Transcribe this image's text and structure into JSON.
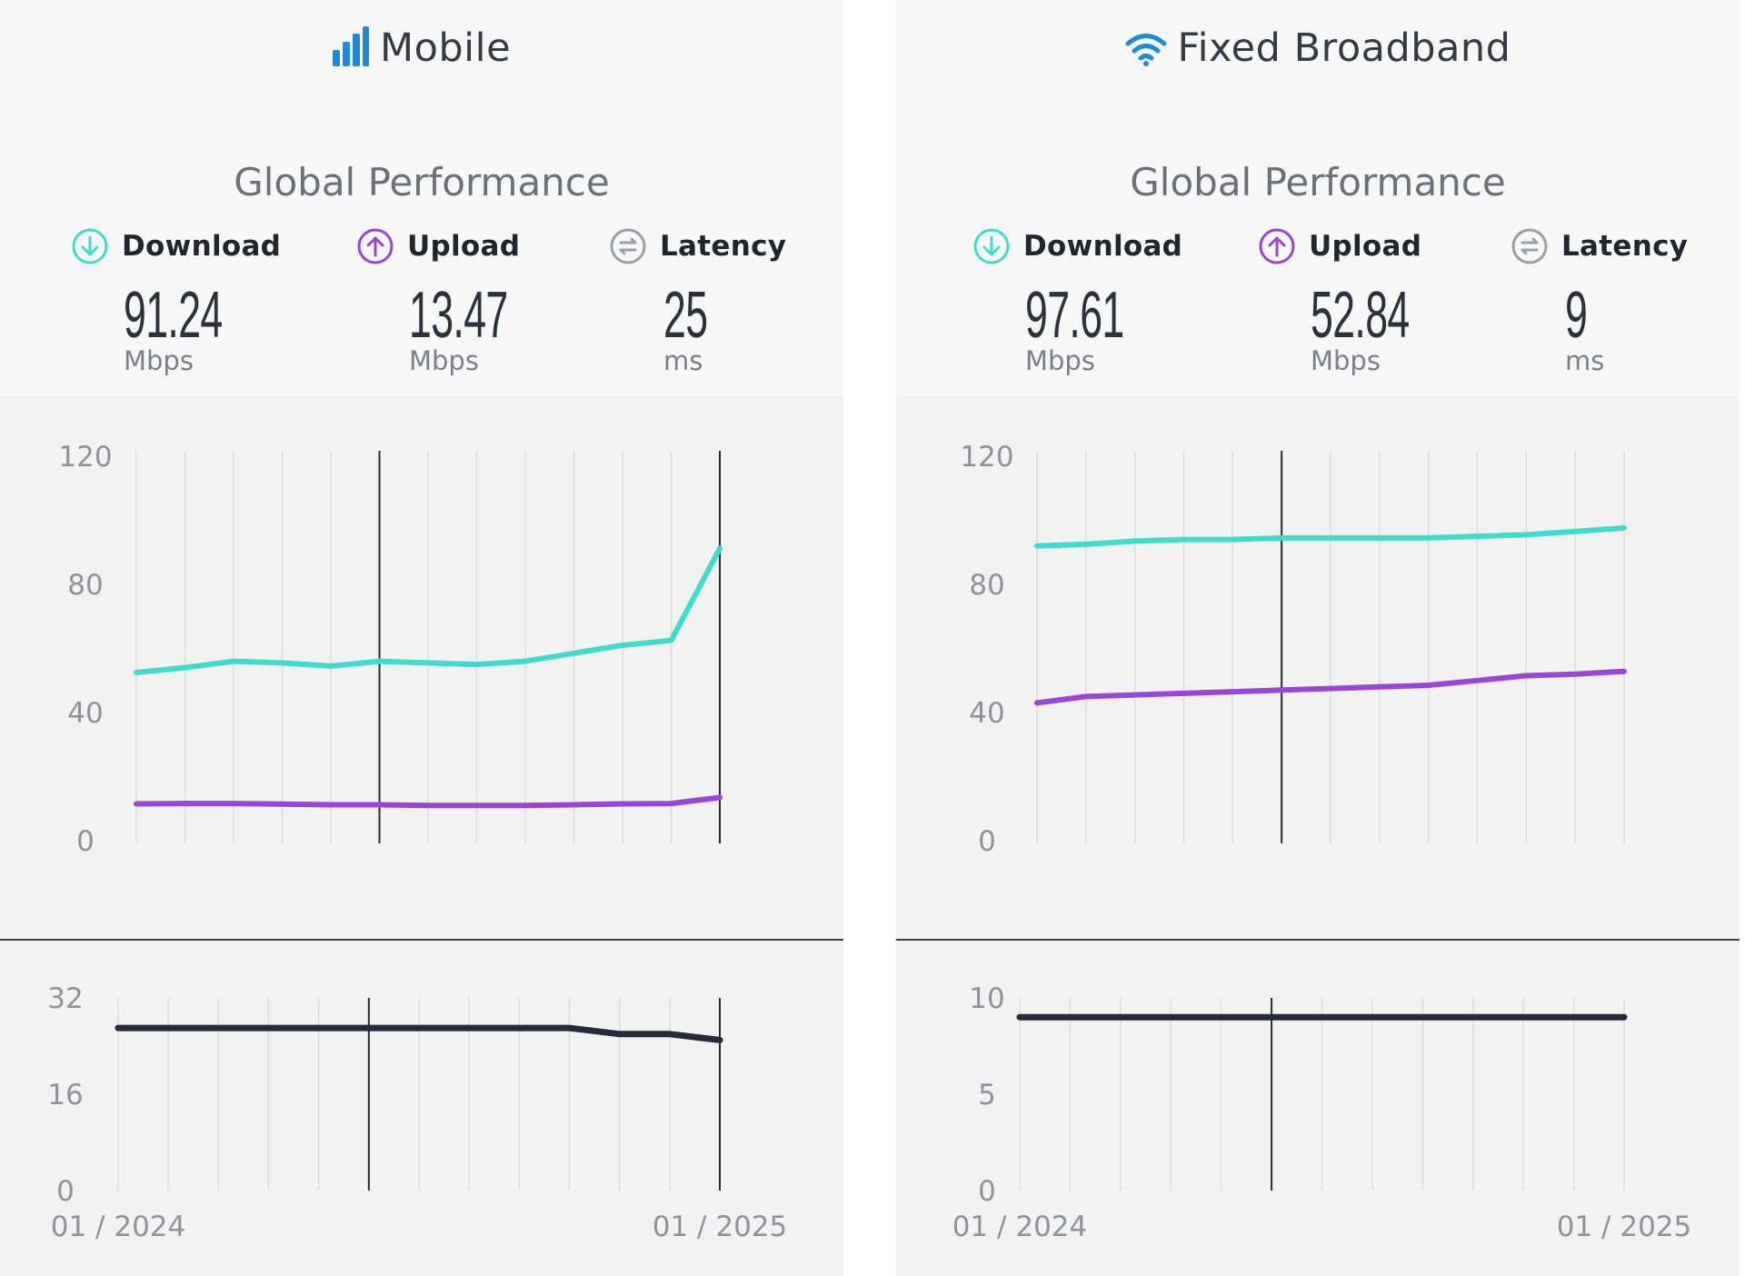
{
  "colors": {
    "download": "#40dccb",
    "upload": "#9b45d6",
    "latency": "#262b3b",
    "icon_blue": "#1f8ad6",
    "latency_icon": "#9aa0a8"
  },
  "panels": [
    {
      "id": "mobile",
      "title": "Mobile",
      "title_icon": "cell-signal-icon",
      "subtitle": "Global Performance",
      "metrics": [
        {
          "label": "Download",
          "icon": "download-icon",
          "value": "91.24",
          "unit": "Mbps"
        },
        {
          "label": "Upload",
          "icon": "upload-icon",
          "value": "13.47",
          "unit": "Mbps"
        },
        {
          "label": "Latency",
          "icon": "latency-icon",
          "value": "25",
          "unit": "ms"
        }
      ]
    },
    {
      "id": "fixed",
      "title": "Fixed Broadband",
      "title_icon": "wifi-icon",
      "subtitle": "Global Performance",
      "metrics": [
        {
          "label": "Download",
          "icon": "download-icon",
          "value": "97.61",
          "unit": "Mbps"
        },
        {
          "label": "Upload",
          "icon": "upload-icon",
          "value": "52.84",
          "unit": "Mbps"
        },
        {
          "label": "Latency",
          "icon": "latency-icon",
          "value": "9",
          "unit": "ms"
        }
      ]
    }
  ],
  "chart_data": [
    {
      "id": "mobile-speed",
      "type": "line",
      "x": [
        "01 / 2024",
        "02 / 2024",
        "03 / 2024",
        "04 / 2024",
        "05 / 2024",
        "06 / 2024",
        "07 / 2024",
        "08 / 2024",
        "09 / 2024",
        "10 / 2024",
        "11 / 2024",
        "12 / 2024",
        "01 / 2025"
      ],
      "series": [
        {
          "key": "download",
          "values": [
            52.5,
            54,
            56,
            55.5,
            54.5,
            56,
            55.5,
            55,
            56,
            58.5,
            61,
            62.5,
            91.24
          ]
        },
        {
          "key": "upload",
          "values": [
            11.5,
            11.6,
            11.6,
            11.4,
            11.2,
            11.2,
            11,
            11,
            11,
            11.2,
            11.5,
            11.6,
            13.47
          ]
        }
      ],
      "ylim": [
        0,
        120
      ],
      "yticks": [
        0,
        40,
        80,
        120
      ],
      "markers": [
        "06 / 2024",
        "01 / 2025"
      ],
      "grid": true
    },
    {
      "id": "mobile-latency",
      "type": "line",
      "x": [
        "01 / 2024",
        "02 / 2024",
        "03 / 2024",
        "04 / 2024",
        "05 / 2024",
        "06 / 2024",
        "07 / 2024",
        "08 / 2024",
        "09 / 2024",
        "10 / 2024",
        "11 / 2024",
        "12 / 2024",
        "01 / 2025"
      ],
      "series": [
        {
          "key": "latency",
          "values": [
            27,
            27,
            27,
            27,
            27,
            27,
            27,
            27,
            27,
            27,
            26,
            26,
            25
          ]
        }
      ],
      "ylim": [
        0,
        32
      ],
      "yticks": [
        0,
        16,
        32
      ],
      "xtick_labels": [
        "01 / 2024",
        "01 / 2025"
      ],
      "markers": [
        "06 / 2024",
        "01 / 2025"
      ],
      "grid": true
    },
    {
      "id": "fixed-speed",
      "type": "line",
      "x": [
        "01 / 2024",
        "02 / 2024",
        "03 / 2024",
        "04 / 2024",
        "05 / 2024",
        "06 / 2024",
        "07 / 2024",
        "08 / 2024",
        "09 / 2024",
        "10 / 2024",
        "11 / 2024",
        "12 / 2024",
        "01 / 2025"
      ],
      "series": [
        {
          "key": "download",
          "values": [
            92,
            92.5,
            93.5,
            94,
            94,
            94.5,
            94.5,
            94.5,
            94.5,
            95,
            95.5,
            96.5,
            97.61
          ]
        },
        {
          "key": "upload",
          "values": [
            43,
            45,
            45.5,
            46,
            46.5,
            47,
            47.5,
            48,
            48.5,
            50,
            51.5,
            52,
            52.84
          ]
        }
      ],
      "ylim": [
        0,
        120
      ],
      "yticks": [
        0,
        40,
        80,
        120
      ],
      "markers": [
        "06 / 2024"
      ],
      "grid": true
    },
    {
      "id": "fixed-latency",
      "type": "line",
      "x": [
        "01 / 2024",
        "02 / 2024",
        "03 / 2024",
        "04 / 2024",
        "05 / 2024",
        "06 / 2024",
        "07 / 2024",
        "08 / 2024",
        "09 / 2024",
        "10 / 2024",
        "11 / 2024",
        "12 / 2024",
        "01 / 2025"
      ],
      "series": [
        {
          "key": "latency",
          "values": [
            9,
            9,
            9,
            9,
            9,
            9,
            9,
            9,
            9,
            9,
            9,
            9,
            9
          ]
        }
      ],
      "ylim": [
        0,
        10
      ],
      "yticks": [
        0,
        5,
        10
      ],
      "xtick_labels": [
        "01 / 2024",
        "01 / 2025"
      ],
      "markers": [
        "06 / 2024"
      ],
      "grid": true
    }
  ]
}
